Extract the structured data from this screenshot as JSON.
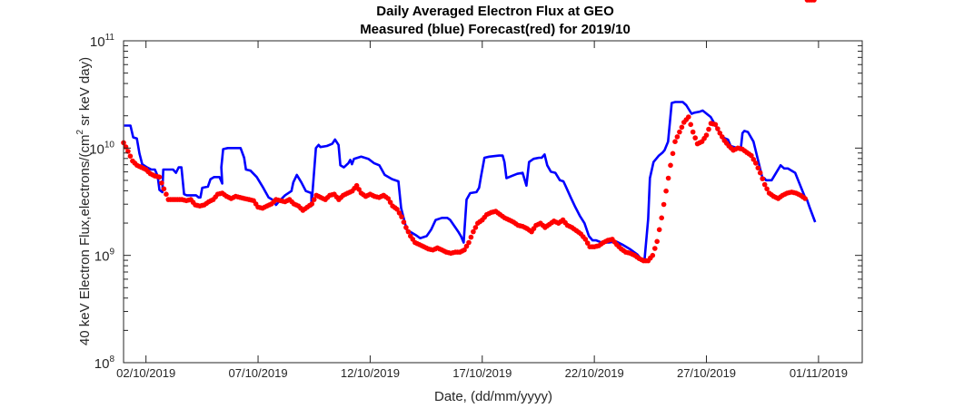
{
  "chart_data": {
    "type": "line",
    "title": "Daily Averaged Electron Flux at GEO",
    "subtitle": "Measured (blue) Forecast(red) for 2019/10",
    "xlabel": "Date, (dd/mm/yyyy)",
    "ylabel_main": "40 keV Electron Flux,electrons/(cm",
    "ylabel_sup": "2",
    "ylabel_tail": " sr keV day)",
    "yscale": "log",
    "ylim": [
      100000000.0,
      100000000000.0
    ],
    "xlim": [
      1.0,
      33.95
    ],
    "x_units": "day of October 2019 (32 = 01/11/2019)",
    "y_ticks": [
      {
        "base": "10",
        "exp": "8",
        "value": 100000000.0
      },
      {
        "base": "10",
        "exp": "9",
        "value": 1000000000.0
      },
      {
        "base": "10",
        "exp": "10",
        "value": 10000000000.0
      },
      {
        "base": "10",
        "exp": "11",
        "value": 100000000000.0
      }
    ],
    "x_ticks": [
      {
        "label": "02/10/2019",
        "value": 2
      },
      {
        "label": "07/10/2019",
        "value": 7
      },
      {
        "label": "12/10/2019",
        "value": 12
      },
      {
        "label": "17/10/2019",
        "value": 17
      },
      {
        "label": "22/10/2019",
        "value": 22
      },
      {
        "label": "27/10/2019",
        "value": 27
      },
      {
        "label": "01/11/2019",
        "value": 32
      }
    ],
    "grid": false,
    "series": [
      {
        "name": "Measured",
        "color": "#0000ff",
        "style": "line",
        "x": [
          1.03,
          1.31,
          1.43,
          1.59,
          1.71,
          1.83,
          2.04,
          2.24,
          2.4,
          2.52,
          2.6,
          2.73,
          2.77,
          3.21,
          3.34,
          3.46,
          3.58,
          3.7,
          3.82,
          4.23,
          4.35,
          4.43,
          4.51,
          4.76,
          4.88,
          5.04,
          5.28,
          5.4,
          5.36,
          5.44,
          5.65,
          6.22,
          6.38,
          6.46,
          6.66,
          6.94,
          7.23,
          7.47,
          7.63,
          7.8,
          7.92,
          8.2,
          8.49,
          8.57,
          8.73,
          8.93,
          9.13,
          9.38,
          9.38,
          9.58,
          9.7,
          9.78,
          10.07,
          10.31,
          10.43,
          10.59,
          10.67,
          10.83,
          11.03,
          11.11,
          11.19,
          11.28,
          11.6,
          11.76,
          11.92,
          12.17,
          12.41,
          12.65,
          12.98,
          13.26,
          13.38,
          13.63,
          14.03,
          14.23,
          14.52,
          14.72,
          14.92,
          15.2,
          15.44,
          15.57,
          15.77,
          15.93,
          16.05,
          16.17,
          16.3,
          16.46,
          16.74,
          16.86,
          16.94,
          17.1,
          17.31,
          17.75,
          17.91,
          17.99,
          18.08,
          18.32,
          18.56,
          18.8,
          18.97,
          19.09,
          19.29,
          19.53,
          19.65,
          19.78,
          19.9,
          20.06,
          20.26,
          20.46,
          20.62,
          20.71,
          20.95,
          21.15,
          21.35,
          21.56,
          21.76,
          21.92,
          22.08,
          22.32,
          22.65,
          22.97,
          23.25,
          23.58,
          23.91,
          24.11,
          24.24,
          24.4,
          24.48,
          24.64,
          24.88,
          25.05,
          25.13,
          25.29,
          25.45,
          25.61,
          25.94,
          26.1,
          26.34,
          26.46,
          26.71,
          26.83,
          27.19,
          27.52,
          27.72,
          27.84,
          27.96,
          28.08,
          28.53,
          28.61,
          28.69,
          28.85,
          29.1,
          29.5,
          29.58,
          29.66,
          29.79,
          29.91,
          30.31,
          30.47,
          30.63,
          30.96,
          31.4,
          31.48,
          31.6,
          31.85
        ],
        "log10_flux": [
          10.21,
          10.21,
          10.1,
          10.09,
          9.95,
          9.85,
          9.82,
          9.8,
          9.8,
          9.74,
          9.61,
          9.59,
          9.8,
          9.8,
          9.77,
          9.82,
          9.82,
          9.57,
          9.56,
          9.56,
          9.54,
          9.54,
          9.63,
          9.64,
          9.71,
          9.73,
          9.73,
          9.67,
          9.82,
          9.99,
          10.0,
          10.0,
          9.91,
          9.8,
          9.79,
          9.73,
          9.63,
          9.54,
          9.52,
          9.47,
          9.5,
          9.56,
          9.6,
          9.68,
          9.75,
          9.68,
          9.6,
          9.58,
          9.46,
          10.0,
          10.03,
          10.01,
          10.02,
          10.04,
          10.08,
          10.03,
          9.84,
          9.82,
          9.86,
          9.89,
          9.85,
          9.9,
          9.92,
          9.91,
          9.9,
          9.86,
          9.84,
          9.75,
          9.71,
          9.69,
          9.44,
          9.24,
          9.19,
          9.16,
          9.18,
          9.24,
          9.33,
          9.35,
          9.35,
          9.33,
          9.27,
          9.22,
          9.18,
          9.12,
          9.52,
          9.58,
          9.59,
          9.63,
          9.73,
          9.91,
          9.92,
          9.93,
          9.93,
          9.87,
          9.72,
          9.74,
          9.76,
          9.77,
          9.65,
          9.87,
          9.9,
          9.91,
          9.91,
          9.94,
          9.84,
          9.78,
          9.77,
          9.7,
          9.69,
          9.65,
          9.54,
          9.45,
          9.37,
          9.3,
          9.18,
          9.14,
          9.14,
          9.12,
          9.12,
          9.13,
          9.1,
          9.06,
          9.01,
          8.96,
          8.96,
          9.34,
          9.72,
          9.87,
          9.93,
          9.96,
          9.98,
          10.06,
          10.42,
          10.43,
          10.43,
          10.4,
          10.32,
          10.33,
          10.34,
          10.35,
          10.29,
          10.17,
          10.1,
          10.09,
          10.08,
          10.02,
          9.99,
          10.14,
          10.16,
          10.15,
          10.06,
          9.72,
          9.72,
          9.7,
          9.7,
          9.7,
          9.84,
          9.81,
          9.81,
          9.77,
          9.54,
          9.52,
          9.45,
          9.31
        ]
      },
      {
        "name": "Forecast",
        "color": "#ff0000",
        "style": "markers",
        "x": [
          1.0,
          1.2,
          1.4,
          1.6,
          1.8,
          2.0,
          2.2,
          2.4,
          2.6,
          2.8,
          3.0,
          3.2,
          3.4,
          3.6,
          3.8,
          4.0,
          4.2,
          4.4,
          4.6,
          4.8,
          5.0,
          5.2,
          5.4,
          5.6,
          5.8,
          6.0,
          6.2,
          6.4,
          6.6,
          6.8,
          7.0,
          7.2,
          7.4,
          7.6,
          7.8,
          8.0,
          8.2,
          8.4,
          8.6,
          8.8,
          9.0,
          9.2,
          9.4,
          9.6,
          9.8,
          10.0,
          10.2,
          10.4,
          10.6,
          10.8,
          11.0,
          11.2,
          11.4,
          11.6,
          11.8,
          12.0,
          12.2,
          12.4,
          12.6,
          12.8,
          13.0,
          13.2,
          13.4,
          13.6,
          13.8,
          14.0,
          14.2,
          14.4,
          14.6,
          14.8,
          15.0,
          15.2,
          15.4,
          15.6,
          15.8,
          16.0,
          16.2,
          16.4,
          16.6,
          16.8,
          17.0,
          17.2,
          17.4,
          17.6,
          17.8,
          18.0,
          18.2,
          18.4,
          18.6,
          18.8,
          19.0,
          19.2,
          19.4,
          19.6,
          19.8,
          20.0,
          20.2,
          20.4,
          20.6,
          20.8,
          21.0,
          21.2,
          21.4,
          21.6,
          21.8,
          22.0,
          22.2,
          22.4,
          22.6,
          22.8,
          23.0,
          23.2,
          23.4,
          23.6,
          23.8,
          24.0,
          24.2,
          24.4,
          24.6,
          24.8,
          25.0,
          25.2,
          25.4,
          25.6,
          25.8,
          26.0,
          26.2,
          26.4,
          26.6,
          26.8,
          27.0,
          27.2,
          27.4,
          27.6,
          27.8,
          28.0,
          28.2,
          28.4,
          28.6,
          28.8,
          29.0,
          29.2,
          29.4,
          29.6,
          29.8,
          30.0,
          30.2,
          30.4,
          30.6,
          30.8,
          31.0,
          31.2,
          31.4,
          31.6,
          31.8
        ],
        "log10_flux": [
          10.05,
          9.97,
          9.88,
          9.84,
          9.82,
          9.8,
          9.76,
          9.74,
          9.73,
          9.62,
          9.52,
          9.52,
          9.52,
          9.52,
          9.51,
          9.52,
          9.47,
          9.46,
          9.47,
          9.5,
          9.52,
          9.57,
          9.58,
          9.55,
          9.53,
          9.55,
          9.54,
          9.53,
          9.52,
          9.51,
          9.45,
          9.44,
          9.46,
          9.48,
          9.52,
          9.51,
          9.5,
          9.52,
          9.48,
          9.46,
          9.42,
          9.45,
          9.48,
          9.56,
          9.54,
          9.52,
          9.56,
          9.57,
          9.52,
          9.56,
          9.58,
          9.6,
          9.65,
          9.58,
          9.55,
          9.57,
          9.55,
          9.54,
          9.56,
          9.53,
          9.46,
          9.43,
          9.36,
          9.26,
          9.18,
          9.12,
          9.1,
          9.08,
          9.06,
          9.05,
          9.07,
          9.05,
          9.03,
          9.02,
          9.03,
          9.03,
          9.05,
          9.12,
          9.22,
          9.3,
          9.33,
          9.38,
          9.4,
          9.41,
          9.38,
          9.35,
          9.33,
          9.31,
          9.28,
          9.27,
          9.25,
          9.22,
          9.28,
          9.3,
          9.26,
          9.29,
          9.32,
          9.3,
          9.33,
          9.28,
          9.26,
          9.23,
          9.2,
          9.15,
          9.08,
          9.08,
          9.09,
          9.12,
          9.14,
          9.15,
          9.1,
          9.06,
          9.03,
          9.02,
          9.0,
          8.97,
          8.95,
          8.95,
          9.0,
          9.13,
          9.35,
          9.6,
          9.84,
          10.06,
          10.15,
          10.24,
          10.29,
          10.15,
          10.04,
          10.06,
          10.12,
          10.23,
          10.22,
          10.14,
          10.07,
          10.02,
          9.98,
          10.0,
          9.99,
          9.96,
          9.93,
          9.86,
          9.77,
          9.66,
          9.58,
          9.55,
          9.53,
          9.56,
          9.58,
          9.59,
          9.58,
          9.56,
          9.53
        ]
      }
    ]
  }
}
